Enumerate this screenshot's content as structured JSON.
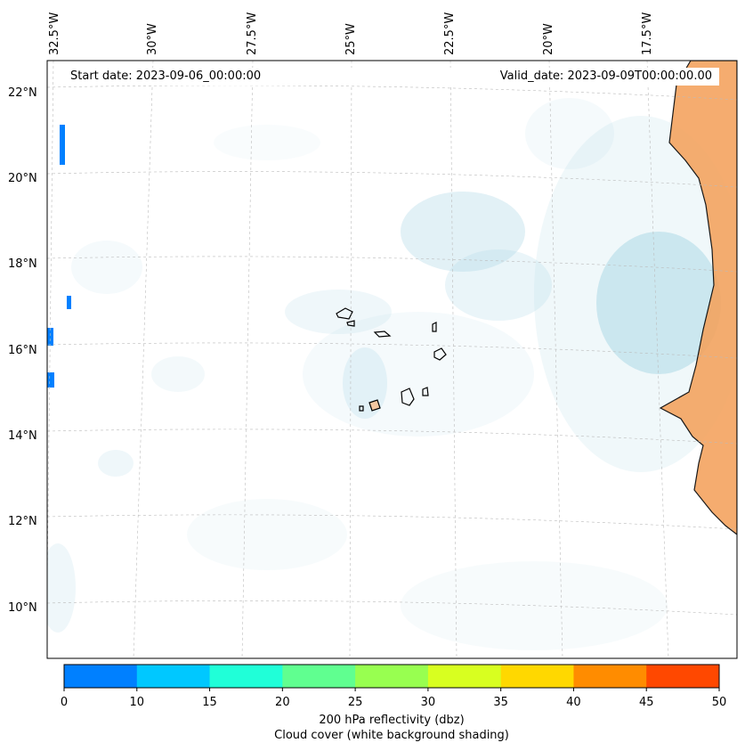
{
  "header": {
    "start_date": "Start date: 2023-09-06_00:00:00",
    "valid_date": "Valid_date: 2023-09-09T00:00:00.00"
  },
  "map": {
    "lon_labels": [
      "32.5°W",
      "30°W",
      "27.5°W",
      "25°W",
      "22.5°W",
      "20°W",
      "17.5°W"
    ],
    "lat_labels": [
      "22°N",
      "20°N",
      "18°N",
      "16°N",
      "14°N",
      "12°N",
      "10°N"
    ],
    "land_color": "#f4a460",
    "cloud_color": "#add8e6"
  },
  "colorbar": {
    "ticks": [
      "0",
      "10",
      "15",
      "20",
      "25",
      "30",
      "35",
      "40",
      "45",
      "50"
    ],
    "colors": [
      "#0080ff",
      "#00c8ff",
      "#20ffd8",
      "#60ff90",
      "#98ff50",
      "#d8ff20",
      "#ffd800",
      "#ff8c00",
      "#ff4800"
    ],
    "label_line1": "200 hPa reflectivity (dbz)",
    "label_line2": "Cloud cover (white background shading)"
  }
}
